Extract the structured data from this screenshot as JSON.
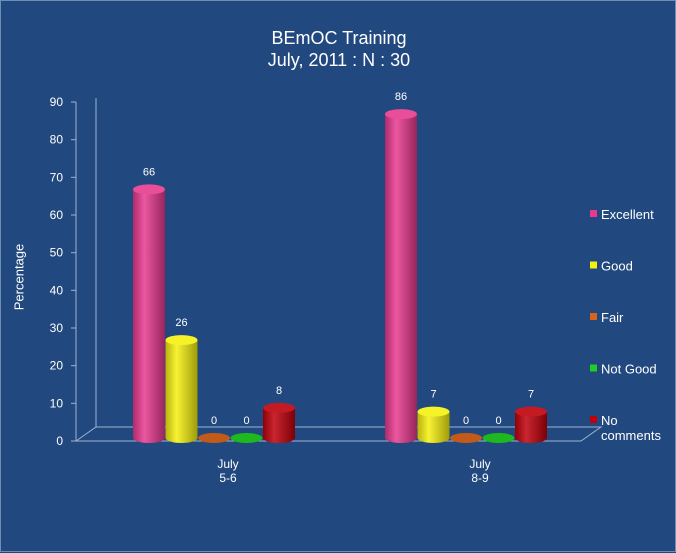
{
  "chart_data": {
    "type": "bar",
    "title": "BEmOC Training",
    "subtitle": "July, 2011 : N : 30",
    "xlabel": "",
    "ylabel": "Percentage",
    "ylim": [
      0,
      90
    ],
    "yticks": [
      0,
      10,
      20,
      30,
      40,
      50,
      60,
      70,
      80,
      90
    ],
    "categories": [
      [
        "July",
        "5-6"
      ],
      [
        "July",
        "8-9"
      ]
    ],
    "series": [
      {
        "name": "Excellent",
        "values": [
          66,
          86
        ],
        "color": "#E8398F"
      },
      {
        "name": "Good",
        "values": [
          26,
          7
        ],
        "color": "#F5F010"
      },
      {
        "name": "Fair",
        "values": [
          0,
          0
        ],
        "color": "#D8641C"
      },
      {
        "name": "Not Good",
        "values": [
          0,
          0
        ],
        "color": "#22CC22"
      },
      {
        "name": "No comments",
        "values": [
          8,
          7
        ],
        "color": "#C0000A",
        "legend_lines": [
          "No",
          "comments"
        ]
      }
    ],
    "legend_position": "right",
    "grid": false
  },
  "colors": {
    "background": "#21497F",
    "text": "#ffffff",
    "axis": "#9FB3CF"
  }
}
